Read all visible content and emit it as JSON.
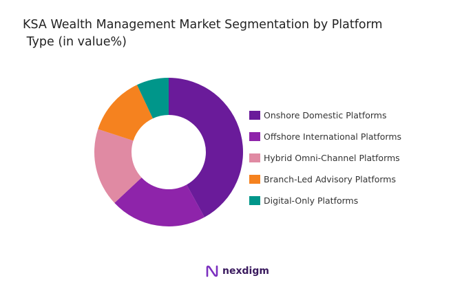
{
  "chart_data": {
    "type": "pie",
    "donut": true,
    "title_lines": [
      "KSA Wealth Management Market Segmentation by Platform",
      " Type (in value%)"
    ],
    "categories": [
      "Onshore Domestic Platforms",
      "Offshore International Platforms",
      "Hybrid Omni-Channel Platforms",
      "Branch-Led Advisory Platforms",
      "Digital-Only Platforms"
    ],
    "values": [
      42,
      21,
      17,
      13,
      7
    ],
    "colors": [
      "#6a1b9a",
      "#8e24aa",
      "#e08aa3",
      "#f5821f",
      "#00968a"
    ],
    "legend_position": "right"
  },
  "logo": {
    "text": "nexdigm"
  }
}
